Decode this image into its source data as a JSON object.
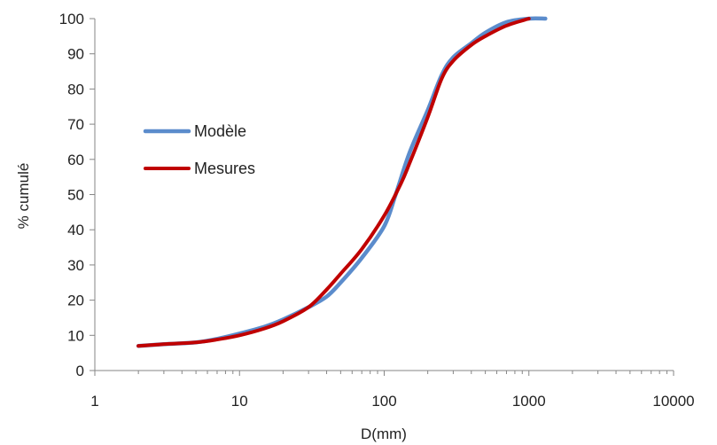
{
  "chart_data": {
    "type": "line",
    "xlabel": "D(mm)",
    "ylabel": "% cumulé",
    "x_scale": "log",
    "xlim": [
      1,
      10000
    ],
    "ylim": [
      0,
      100
    ],
    "x_ticks": [
      "1",
      "10",
      "100",
      "1000",
      "10000"
    ],
    "y_ticks": [
      "0",
      "10",
      "20",
      "30",
      "40",
      "50",
      "60",
      "70",
      "80",
      "90",
      "100"
    ],
    "grid": false,
    "legend_placement": "center-left inside plot",
    "series": [
      {
        "name": "Modèle",
        "color": "#5b8ccc",
        "points": [
          [
            2,
            7
          ],
          [
            3,
            7.5
          ],
          [
            5,
            8
          ],
          [
            7,
            9
          ],
          [
            10,
            10.5
          ],
          [
            15,
            12.5
          ],
          [
            20,
            14.5
          ],
          [
            30,
            18
          ],
          [
            40,
            21
          ],
          [
            50,
            25
          ],
          [
            70,
            32
          ],
          [
            100,
            41
          ],
          [
            120,
            50
          ],
          [
            150,
            62
          ],
          [
            200,
            74
          ],
          [
            250,
            84
          ],
          [
            300,
            89
          ],
          [
            400,
            93
          ],
          [
            500,
            96
          ],
          [
            700,
            99
          ],
          [
            1000,
            100
          ],
          [
            1300,
            100
          ]
        ]
      },
      {
        "name": "Mesures",
        "color": "#c00000",
        "points": [
          [
            2,
            7
          ],
          [
            3,
            7.5
          ],
          [
            5,
            8
          ],
          [
            7,
            8.8
          ],
          [
            10,
            10
          ],
          [
            15,
            12
          ],
          [
            20,
            14
          ],
          [
            30,
            18
          ],
          [
            40,
            23
          ],
          [
            50,
            27.5
          ],
          [
            70,
            34.5
          ],
          [
            100,
            44
          ],
          [
            130,
            53
          ],
          [
            150,
            59
          ],
          [
            200,
            72
          ],
          [
            250,
            83
          ],
          [
            300,
            88
          ],
          [
            400,
            92.5
          ],
          [
            500,
            95
          ],
          [
            700,
            98
          ],
          [
            1000,
            100
          ]
        ]
      }
    ]
  }
}
